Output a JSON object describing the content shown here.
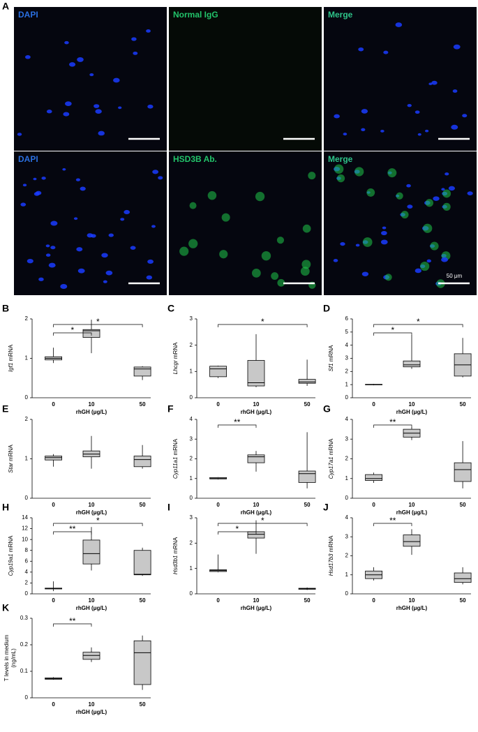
{
  "panel_a": {
    "label": "A",
    "rows": [
      [
        "DAPI",
        "Normal IgG",
        "Merge"
      ],
      [
        "DAPI",
        "HSD3B Ab.",
        "Merge"
      ]
    ],
    "scale_bar": "50 μm"
  },
  "chart_data": [
    {
      "type": "box",
      "letter": "B",
      "gene": "Igf1",
      "ylabel": "mRNA",
      "xlabel": "rhGH (μg/L)",
      "categories": [
        "0",
        "10",
        "50"
      ],
      "ylim": [
        0,
        2
      ],
      "yticks": [
        0,
        1,
        2
      ],
      "boxes": [
        {
          "min": 0.88,
          "q1": 0.96,
          "median": 1.0,
          "q3": 1.04,
          "max": 1.27
        },
        {
          "min": 1.13,
          "q1": 1.53,
          "median": 1.7,
          "q3": 1.73,
          "max": 1.98
        },
        {
          "min": 0.45,
          "q1": 0.55,
          "median": 0.73,
          "q3": 0.78,
          "max": 0.8
        }
      ],
      "significance": [
        {
          "from": 0,
          "to": 1,
          "label": "*"
        },
        {
          "from": 0,
          "to": 2,
          "label": "*"
        }
      ]
    },
    {
      "type": "box",
      "letter": "C",
      "gene": "Lhcgr",
      "ylabel": "mRNA",
      "xlabel": "rhGH (μg/L)",
      "categories": [
        "0",
        "10",
        "50"
      ],
      "ylim": [
        0,
        3
      ],
      "yticks": [
        0,
        1,
        2,
        3
      ],
      "boxes": [
        {
          "min": 0.75,
          "q1": 0.8,
          "median": 1.1,
          "q3": 1.2,
          "max": 1.22
        },
        {
          "min": 0.4,
          "q1": 0.45,
          "median": 0.57,
          "q3": 1.42,
          "max": 2.42
        },
        {
          "min": 0.45,
          "q1": 0.55,
          "median": 0.6,
          "q3": 0.7,
          "max": 1.45
        }
      ],
      "significance": [
        {
          "from": 0,
          "to": 2,
          "label": "*"
        }
      ]
    },
    {
      "type": "box",
      "letter": "D",
      "gene": "Sf1",
      "ylabel": "mRNA",
      "xlabel": "rhGH (μg/L)",
      "categories": [
        "0",
        "10",
        "50"
      ],
      "ylim": [
        0,
        6
      ],
      "yticks": [
        0,
        1,
        2,
        3,
        4,
        5,
        6
      ],
      "boxes": [
        {
          "min": 0.95,
          "q1": 0.98,
          "median": 1.0,
          "q3": 1.02,
          "max": 1.05
        },
        {
          "min": 2.2,
          "q1": 2.35,
          "median": 2.5,
          "q3": 2.8,
          "max": 4.75
        },
        {
          "min": 1.55,
          "q1": 1.65,
          "median": 2.5,
          "q3": 3.35,
          "max": 4.55
        }
      ],
      "significance": [
        {
          "from": 0,
          "to": 1,
          "label": "*"
        },
        {
          "from": 0,
          "to": 2,
          "label": "*"
        }
      ]
    },
    {
      "type": "box",
      "letter": "E",
      "gene": "Star",
      "ylabel": "mRNA",
      "xlabel": "rhGH (μg/L)",
      "categories": [
        "0",
        "10",
        "50"
      ],
      "ylim": [
        0,
        2
      ],
      "yticks": [
        0,
        1,
        2
      ],
      "boxes": [
        {
          "min": 0.8,
          "q1": 0.97,
          "median": 1.03,
          "q3": 1.07,
          "max": 1.12
        },
        {
          "min": 0.75,
          "q1": 1.05,
          "median": 1.12,
          "q3": 1.2,
          "max": 1.58
        },
        {
          "min": 0.75,
          "q1": 0.8,
          "median": 0.98,
          "q3": 1.07,
          "max": 1.35
        }
      ],
      "significance": []
    },
    {
      "type": "box",
      "letter": "F",
      "gene": "Cyp11a1",
      "ylabel": "mRNA",
      "xlabel": "rhGH (μg/L)",
      "categories": [
        "0",
        "10",
        "50"
      ],
      "ylim": [
        0,
        4
      ],
      "yticks": [
        0,
        1,
        2,
        3,
        4
      ],
      "boxes": [
        {
          "min": 0.95,
          "q1": 0.98,
          "median": 1.0,
          "q3": 1.05,
          "max": 1.07
        },
        {
          "min": 1.35,
          "q1": 1.8,
          "median": 2.1,
          "q3": 2.2,
          "max": 2.4
        },
        {
          "min": 0.5,
          "q1": 0.8,
          "median": 1.25,
          "q3": 1.38,
          "max": 3.35
        }
      ],
      "significance": [
        {
          "from": 0,
          "to": 1,
          "label": "**"
        }
      ]
    },
    {
      "type": "box",
      "letter": "G",
      "gene": "Cyp17a1",
      "ylabel": "mRNA",
      "xlabel": "rhGH (μg/L)",
      "categories": [
        "0",
        "10",
        "50"
      ],
      "ylim": [
        0,
        4
      ],
      "yticks": [
        0,
        1,
        2,
        3,
        4
      ],
      "boxes": [
        {
          "min": 0.78,
          "q1": 0.9,
          "median": 1.0,
          "q3": 1.2,
          "max": 1.3
        },
        {
          "min": 2.95,
          "q1": 3.1,
          "median": 3.3,
          "q3": 3.5,
          "max": 3.6
        },
        {
          "min": 0.5,
          "q1": 0.85,
          "median": 1.45,
          "q3": 1.8,
          "max": 2.9
        }
      ],
      "significance": [
        {
          "from": 0,
          "to": 1,
          "label": "**"
        }
      ]
    },
    {
      "type": "box",
      "letter": "H",
      "gene": "Cyp19a1",
      "ylabel": "mRNA",
      "xlabel": "rhGH (μg/L)",
      "categories": [
        "0",
        "10",
        "50"
      ],
      "ylim": [
        0,
        14
      ],
      "yticks": [
        0,
        2,
        4,
        6,
        8,
        10,
        12,
        14
      ],
      "boxes": [
        {
          "min": 0.5,
          "q1": 0.9,
          "median": 1.0,
          "q3": 1.05,
          "max": 2.3
        },
        {
          "min": 4.3,
          "q1": 5.5,
          "median": 7.4,
          "q3": 9.9,
          "max": 12.3
        },
        {
          "min": 3.3,
          "q1": 3.5,
          "median": 3.6,
          "q3": 8.0,
          "max": 8.5
        }
      ],
      "significance": [
        {
          "from": 0,
          "to": 1,
          "label": "**"
        },
        {
          "from": 0,
          "to": 2,
          "label": "*"
        }
      ]
    },
    {
      "type": "box",
      "letter": "I",
      "gene": "Hsd3b1",
      "ylabel": "mRNA",
      "xlabel": "rhGH (μg/L)",
      "categories": [
        "0",
        "10",
        "50"
      ],
      "ylim": [
        0,
        3
      ],
      "yticks": [
        0,
        1,
        2,
        3
      ],
      "boxes": [
        {
          "min": 0.85,
          "q1": 0.88,
          "median": 0.92,
          "q3": 0.95,
          "max": 1.55
        },
        {
          "min": 1.58,
          "q1": 2.2,
          "median": 2.35,
          "q3": 2.45,
          "max": 2.9
        },
        {
          "min": 0.15,
          "q1": 0.18,
          "median": 0.2,
          "q3": 0.22,
          "max": 0.25
        }
      ],
      "significance": [
        {
          "from": 0,
          "to": 1,
          "label": "*"
        },
        {
          "from": 0,
          "to": 2,
          "label": "*"
        }
      ]
    },
    {
      "type": "box",
      "letter": "J",
      "gene": "Hsd17b3",
      "ylabel": "mRNA",
      "xlabel": "rhGH (μg/L)",
      "categories": [
        "0",
        "10",
        "50"
      ],
      "ylim": [
        0,
        4
      ],
      "yticks": [
        0,
        1,
        2,
        3,
        4
      ],
      "boxes": [
        {
          "min": 0.7,
          "q1": 0.8,
          "median": 1.0,
          "q3": 1.2,
          "max": 1.4
        },
        {
          "min": 2.05,
          "q1": 2.5,
          "median": 2.75,
          "q3": 3.1,
          "max": 3.4
        },
        {
          "min": 0.5,
          "q1": 0.6,
          "median": 0.8,
          "q3": 1.1,
          "max": 1.4
        }
      ],
      "significance": [
        {
          "from": 0,
          "to": 1,
          "label": "**"
        }
      ]
    },
    {
      "type": "box",
      "letter": "K",
      "ylabel_lines": [
        "T levels in medium",
        "(ng/mL)"
      ],
      "xlabel": "rhGH (μg/L)",
      "categories": [
        "0",
        "10",
        "50"
      ],
      "ylim": [
        0,
        0.3
      ],
      "yticks": [
        0,
        0.1,
        0.2,
        0.3
      ],
      "boxes": [
        {
          "min": 0.068,
          "q1": 0.07,
          "median": 0.072,
          "q3": 0.075,
          "max": 0.078
        },
        {
          "min": 0.135,
          "q1": 0.145,
          "median": 0.16,
          "q3": 0.172,
          "max": 0.19
        },
        {
          "min": 0.03,
          "q1": 0.05,
          "median": 0.17,
          "q3": 0.215,
          "max": 0.235
        }
      ],
      "significance": [
        {
          "from": 0,
          "to": 1,
          "label": "**"
        }
      ]
    }
  ]
}
